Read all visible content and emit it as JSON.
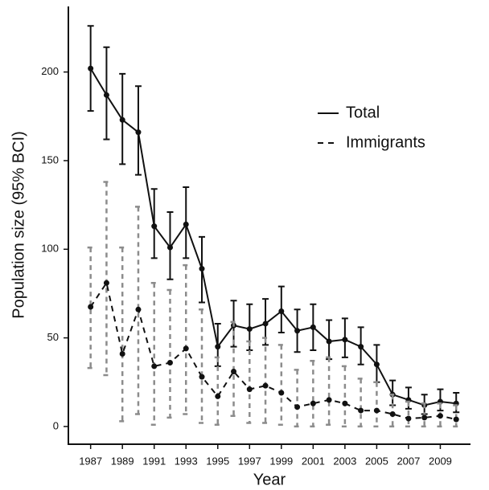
{
  "chart_data": {
    "type": "line",
    "x_label": "Year",
    "y_label": "Population size (95% BCI)",
    "x": [
      1987,
      1988,
      1989,
      1990,
      1991,
      1992,
      1993,
      1994,
      1995,
      1996,
      1997,
      1998,
      1999,
      2000,
      2001,
      2002,
      2003,
      2004,
      2005,
      2006,
      2007,
      2008,
      2009,
      2010
    ],
    "xlim": [
      1985.6,
      2010.9
    ],
    "xticks": [
      1987,
      1989,
      1991,
      1993,
      1995,
      1997,
      1999,
      2001,
      2003,
      2005,
      2007,
      2009
    ],
    "ylim": [
      -10,
      237
    ],
    "yticks": [
      0,
      50,
      100,
      150,
      200
    ],
    "legend": "upper right",
    "series": [
      {
        "name": "Total",
        "color": "#111111",
        "dash": "solid",
        "error_color": "#111111",
        "values": [
          202,
          187,
          173,
          166,
          113,
          101,
          114,
          89,
          45,
          57,
          55,
          58,
          65,
          54,
          56,
          48,
          49,
          45,
          35,
          18,
          15,
          12,
          14,
          13
        ],
        "lower": [
          178,
          162,
          148,
          142,
          95,
          83,
          95,
          70,
          34,
          45,
          43,
          46,
          53,
          42,
          43,
          38,
          39,
          35,
          25,
          12,
          10,
          7,
          9,
          8
        ],
        "upper": [
          226,
          214,
          199,
          192,
          134,
          121,
          135,
          107,
          58,
          71,
          69,
          72,
          79,
          66,
          69,
          60,
          61,
          56,
          46,
          26,
          22,
          18,
          21,
          19
        ]
      },
      {
        "name": "Immigrants",
        "color": "#111111",
        "dash": "dashed",
        "error_color": "#8c8c8c",
        "values": [
          67.5,
          81,
          41,
          66,
          34,
          36,
          44,
          28,
          17,
          31,
          21,
          23,
          19,
          11,
          13,
          15,
          13,
          9,
          9,
          7,
          4.5,
          5,
          6,
          4
        ],
        "lower": [
          33,
          29,
          3,
          7,
          1,
          5,
          7,
          2,
          1,
          6,
          2,
          2,
          1,
          0,
          0,
          1,
          0,
          0,
          0,
          0,
          0,
          0,
          0,
          0
        ],
        "upper": [
          101,
          138,
          101,
          124,
          81,
          77,
          91,
          66,
          39,
          59,
          48,
          50,
          46,
          32,
          37,
          39,
          34,
          27,
          25,
          18,
          14,
          13,
          13,
          12
        ]
      }
    ]
  }
}
